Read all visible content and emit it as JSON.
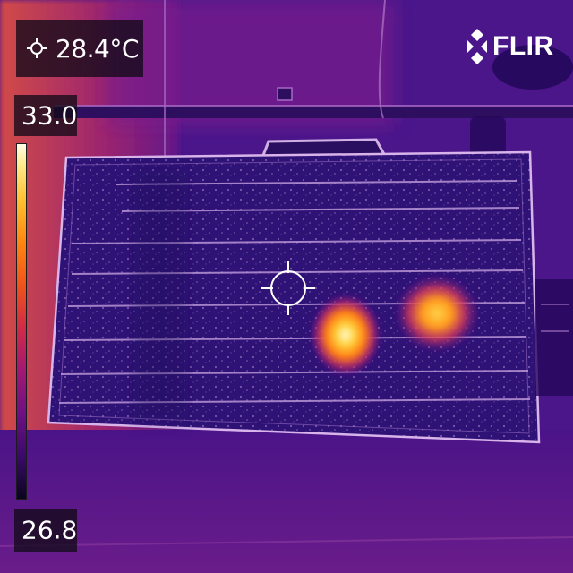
{
  "spot_meter": {
    "value": "28.4°C",
    "icon": "crosshair-icon"
  },
  "temperature_scale": {
    "max_label": "33.0",
    "min_label": "26.8",
    "palette": "iron"
  },
  "brand": {
    "name": "FLIR",
    "icon": "flir-mark-icon"
  },
  "scene": {
    "subject": "solar-panel",
    "hot_spots": 2,
    "colors": {
      "background": "#3a1470",
      "panel": "#2e1276",
      "hot": "#ffb21e",
      "warm_wall": "#c2385a"
    }
  }
}
